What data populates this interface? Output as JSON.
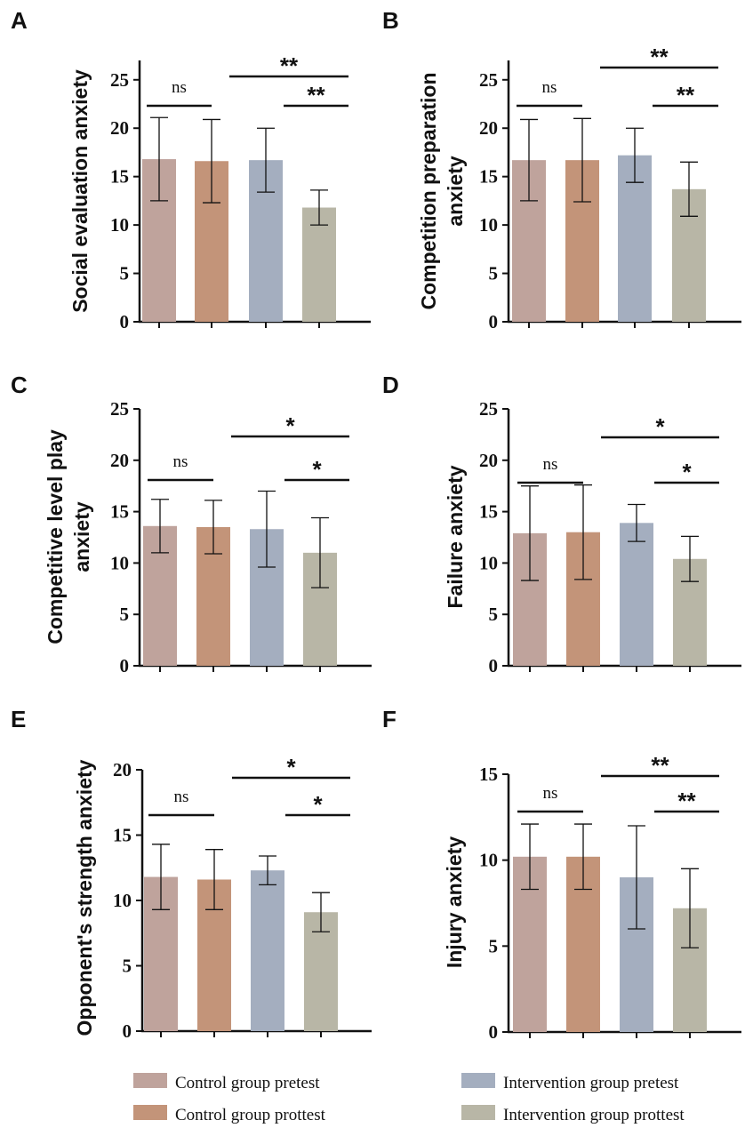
{
  "chart_data": [
    {
      "panel": "A",
      "type": "bar",
      "ylabel": "Social evaluation anxiety",
      "ylim": [
        0,
        27
      ],
      "yticks": [
        0,
        5,
        10,
        15,
        20,
        25
      ],
      "categories": [
        "Control group pretest",
        "Control group prottest",
        "Intervention group pretest",
        "Intervention group prottest"
      ],
      "values": [
        16.8,
        16.6,
        16.7,
        11.8
      ],
      "errors": [
        4.3,
        4.3,
        3.3,
        1.8
      ],
      "annotations": [
        {
          "from": 0,
          "to": 1,
          "label": "ns",
          "level": 1
        },
        {
          "from": 1,
          "to": 3,
          "label": "**",
          "level": 2
        },
        {
          "from": 2,
          "to": 3,
          "label": "**",
          "level": 1
        }
      ]
    },
    {
      "panel": "B",
      "type": "bar",
      "ylabel": [
        "Competition preparation",
        "anxiety"
      ],
      "ylim": [
        0,
        27
      ],
      "yticks": [
        0,
        5,
        10,
        15,
        20,
        25
      ],
      "categories": [
        "Control group pretest",
        "Control group prottest",
        "Intervention group pretest",
        "Intervention group prottest"
      ],
      "values": [
        16.7,
        16.7,
        17.2,
        13.7
      ],
      "errors": [
        4.2,
        4.3,
        2.8,
        2.8
      ],
      "annotations": [
        {
          "from": 0,
          "to": 1,
          "label": "ns",
          "level": 1
        },
        {
          "from": 1,
          "to": 3,
          "label": "**",
          "level": 2
        },
        {
          "from": 2,
          "to": 3,
          "label": "**",
          "level": 1
        }
      ]
    },
    {
      "panel": "C",
      "type": "bar",
      "ylabel": [
        "Competitive level play",
        "anxiety"
      ],
      "ylim": [
        0,
        25
      ],
      "yticks": [
        0,
        5,
        10,
        15,
        20,
        25
      ],
      "categories": [
        "Control group pretest",
        "Control group prottest",
        "Intervention group pretest",
        "Intervention group prottest"
      ],
      "values": [
        13.6,
        13.5,
        13.3,
        11.0
      ],
      "errors": [
        2.6,
        2.6,
        3.7,
        3.4
      ],
      "annotations": [
        {
          "from": 0,
          "to": 1,
          "label": "ns",
          "level": 1
        },
        {
          "from": 1,
          "to": 3,
          "label": "*",
          "level": 2
        },
        {
          "from": 2,
          "to": 3,
          "label": "*",
          "level": 1
        }
      ]
    },
    {
      "panel": "D",
      "type": "bar",
      "ylabel": "Failure anxiety",
      "ylim": [
        0,
        25
      ],
      "yticks": [
        0,
        5,
        10,
        15,
        20,
        25
      ],
      "categories": [
        "Control group pretest",
        "Control group prottest",
        "Intervention group pretest",
        "Intervention group prottest"
      ],
      "values": [
        12.9,
        13.0,
        13.9,
        10.4
      ],
      "errors": [
        4.6,
        4.6,
        1.8,
        2.2
      ],
      "annotations": [
        {
          "from": 0,
          "to": 1,
          "label": "ns",
          "level": 1
        },
        {
          "from": 1,
          "to": 3,
          "label": "*",
          "level": 2
        },
        {
          "from": 2,
          "to": 3,
          "label": "*",
          "level": 1
        }
      ]
    },
    {
      "panel": "E",
      "type": "bar",
      "ylabel": "Opponent's strength anxiety",
      "ylim": [
        0,
        20
      ],
      "yticks": [
        0,
        5,
        10,
        15,
        20
      ],
      "categories": [
        "Control group pretest",
        "Control group prottest",
        "Intervention group pretest",
        "Intervention group prottest"
      ],
      "values": [
        11.8,
        11.6,
        12.3,
        9.1
      ],
      "errors": [
        2.5,
        2.3,
        1.1,
        1.5
      ],
      "annotations": [
        {
          "from": 0,
          "to": 1,
          "label": "ns",
          "level": 1
        },
        {
          "from": 1,
          "to": 3,
          "label": "*",
          "level": 2
        },
        {
          "from": 2,
          "to": 3,
          "label": "*",
          "level": 1
        }
      ]
    },
    {
      "panel": "F",
      "type": "bar",
      "ylabel": "Injury anxiety",
      "ylim": [
        0,
        15
      ],
      "yticks": [
        0,
        5,
        10,
        15
      ],
      "categories": [
        "Control group pretest",
        "Control group prottest",
        "Intervention group pretest",
        "Intervention group prottest"
      ],
      "values": [
        10.2,
        10.2,
        9.0,
        7.2
      ],
      "errors": [
        1.9,
        1.9,
        3.0,
        2.3
      ],
      "annotations": [
        {
          "from": 0,
          "to": 1,
          "label": "ns",
          "level": 1
        },
        {
          "from": 1,
          "to": 3,
          "label": "**",
          "level": 2
        },
        {
          "from": 2,
          "to": 3,
          "label": "**",
          "level": 1
        }
      ]
    }
  ],
  "legend": [
    {
      "label": "Control group pretest",
      "color": "#bfa39c"
    },
    {
      "label": "Control group prottest",
      "color": "#c39479"
    },
    {
      "label": "Intervention group pretest",
      "color": "#a4aebf"
    },
    {
      "label": "Intervention group prottest",
      "color": "#b8b6a6"
    }
  ]
}
